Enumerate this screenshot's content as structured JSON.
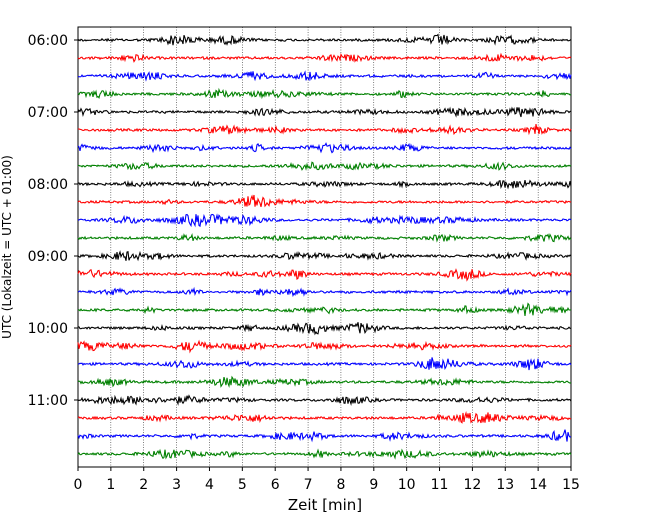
{
  "chart_data": {
    "type": "line",
    "subtype": "helicorder",
    "xlabel": "Zeit  [min]",
    "ylabel": "UTC (Lokalzeit = UTC + 01:00)",
    "xlim": [
      0,
      15
    ],
    "x_ticks": [
      "0",
      "1",
      "2",
      "3",
      "4",
      "5",
      "6",
      "7",
      "8",
      "9",
      "10",
      "11",
      "12",
      "13",
      "14",
      "15"
    ],
    "y_ticks": [
      {
        "label": "06:00",
        "trace": 0
      },
      {
        "label": "07:00",
        "trace": 4
      },
      {
        "label": "08:00",
        "trace": 8
      },
      {
        "label": "09:00",
        "trace": 12
      },
      {
        "label": "10:00",
        "trace": 16
      },
      {
        "label": "11:00",
        "trace": 20
      }
    ],
    "grid": {
      "x": true,
      "y": false,
      "style": "dotted"
    },
    "trace_colors": [
      "#000000",
      "#ff0000",
      "#0000ff",
      "#008000"
    ],
    "trace_start_times": [
      "06:00",
      "06:15",
      "06:30",
      "06:45",
      "07:00",
      "07:15",
      "07:30",
      "07:45",
      "08:00",
      "08:15",
      "08:30",
      "08:45",
      "09:00",
      "09:15",
      "09:30",
      "09:45",
      "10:00",
      "10:15",
      "10:30",
      "10:45",
      "11:00",
      "11:15",
      "11:30",
      "11:45"
    ],
    "trace_minutes": 15
  }
}
